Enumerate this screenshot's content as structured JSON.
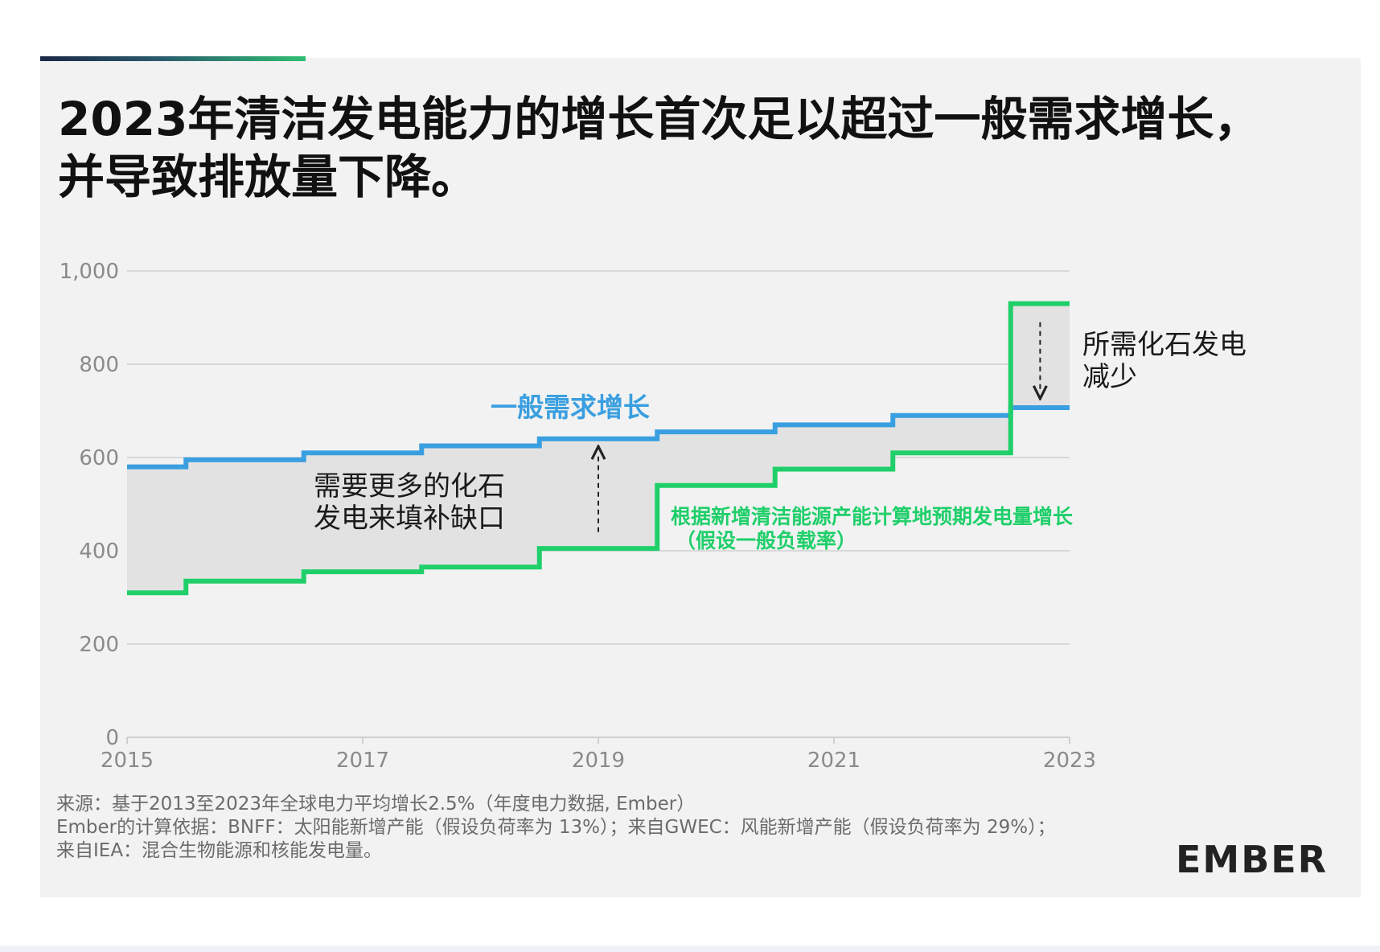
{
  "title_lines": [
    "2023年清洁发电能力的增长首次足以超过一般需求增长，",
    "并导致排放量下降。"
  ],
  "source_lines": [
    "来源：基于2013至2023年全球电力平均增长2.5%（年度电力数据, Ember）",
    "Ember的计算依据：BNFF：太阳能新增产能（假设负荷率为 13%）；来自GWEC：风能新增产能（假设负荷率为 29%）；",
    "来自IEA：混合生物能源和核能发电量。"
  ],
  "logo": {
    "text": "EMBER"
  },
  "colors": {
    "demand": "#3a9fe0",
    "clean": "#1fcf6a",
    "gap_fill": "#e2e2e2",
    "grid": "#cfcfcf",
    "axis_text": "#8a8a8a",
    "annotation_text": "#1a1a1a"
  },
  "chart_data": {
    "type": "line",
    "step": "mid",
    "x": [
      2015,
      2016,
      2017,
      2018,
      2019,
      2020,
      2021,
      2022,
      2023
    ],
    "xlim": [
      2015,
      2023
    ],
    "ylim": [
      0,
      1000
    ],
    "y_ticks": [
      {
        "value": 0,
        "label": "0"
      },
      {
        "value": 200,
        "label": "200"
      },
      {
        "value": 400,
        "label": "400"
      },
      {
        "value": 600,
        "label": "600"
      },
      {
        "value": 800,
        "label": "800"
      },
      {
        "value": 1000,
        "label": "1,000"
      }
    ],
    "x_ticks": [
      {
        "value": 2015,
        "label": "2015"
      },
      {
        "value": 2017,
        "label": "2017"
      },
      {
        "value": 2019,
        "label": "2019"
      },
      {
        "value": 2021,
        "label": "2021"
      },
      {
        "value": 2023,
        "label": "2023"
      }
    ],
    "grid": true,
    "series": [
      {
        "name": "一般需求增长",
        "key": "demand",
        "values": [
          580,
          595,
          610,
          625,
          640,
          655,
          670,
          690,
          707
        ]
      },
      {
        "name": "根据新增清洁能源产能计算地预期发电量增长",
        "name_line2": "（假设一般负载率）",
        "key": "clean",
        "values": [
          310,
          335,
          355,
          365,
          405,
          540,
          575,
          610,
          930
        ]
      }
    ],
    "annotations": [
      {
        "key": "gap",
        "lines": [
          "需要更多的化石",
          "发电来填补缺口"
        ],
        "arrow": "up",
        "arrow_x": 2019.0,
        "arrow_from": 440,
        "arrow_to": 610
      },
      {
        "key": "reduction",
        "lines": [
          "所需化石发电",
          "减少"
        ],
        "arrow": "down",
        "arrow_x": 2022.75,
        "arrow_from": 890,
        "arrow_to": 740
      }
    ]
  }
}
